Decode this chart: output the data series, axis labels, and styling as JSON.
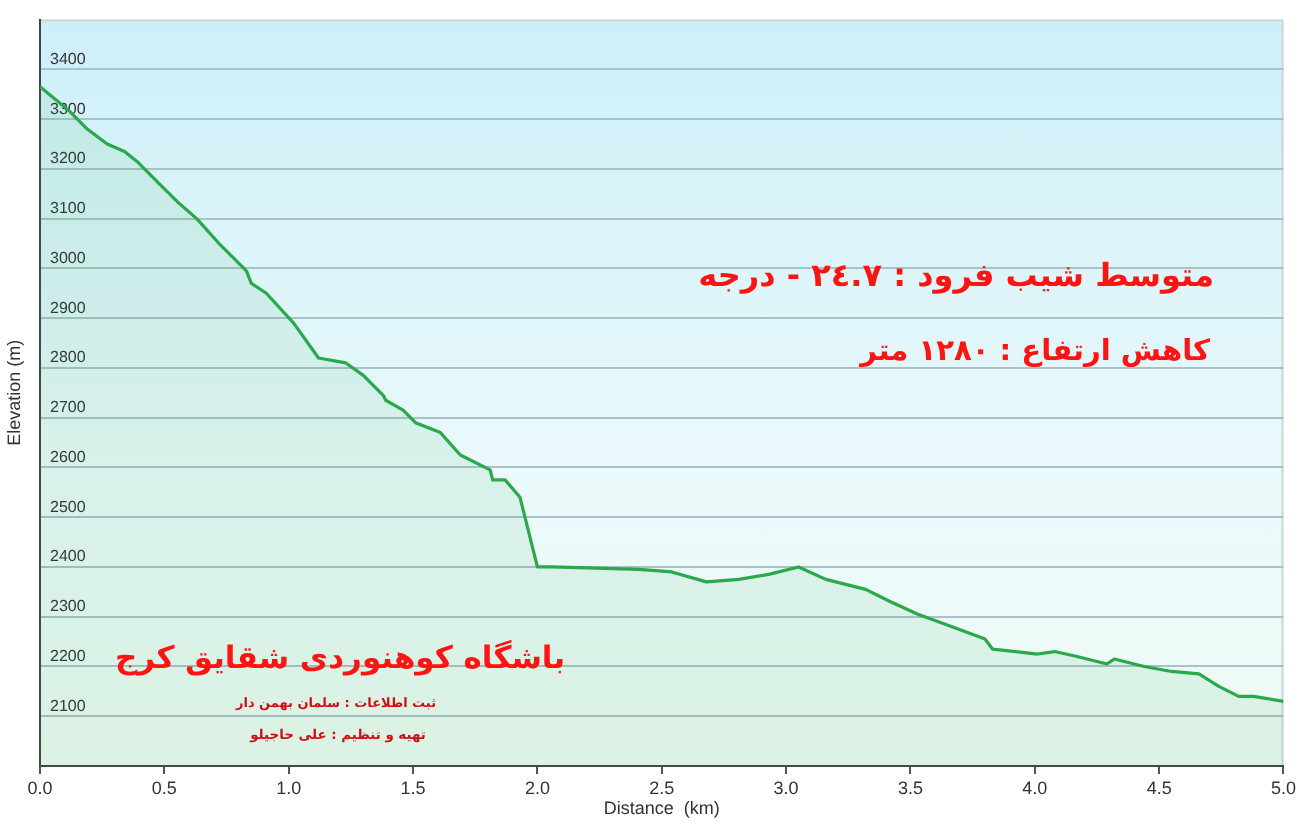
{
  "chart_data": {
    "type": "area",
    "xlabel": "Distance  (km)",
    "ylabel": "Elevation (m)",
    "color": "#2aa84a",
    "x": [
      0,
      0.11,
      0.19,
      0.27,
      0.34,
      0.39,
      0.48,
      0.55,
      0.63,
      0.72,
      0.83,
      0.85,
      0.91,
      1.02,
      1.12,
      1.23,
      1.3,
      1.38,
      1.39,
      1.46,
      1.51,
      1.61,
      1.69,
      1.81,
      1.82,
      1.87,
      1.93,
      2.0,
      2.06,
      2.41,
      2.54,
      2.68,
      2.81,
      2.93,
      3.05,
      3.16,
      3.32,
      3.42,
      3.53,
      3.64,
      3.8,
      3.83,
      4.01,
      4.08,
      4.17,
      4.29,
      4.32,
      4.44,
      4.55,
      4.66,
      4.74,
      4.82,
      4.88,
      5.0
    ],
    "values": [
      3365,
      3320,
      3280,
      3250,
      3235,
      3215,
      3170,
      3135,
      3100,
      3050,
      2995,
      2970,
      2950,
      2890,
      2820,
      2810,
      2785,
      2745,
      2735,
      2715,
      2690,
      2670,
      2625,
      2595,
      2575,
      2575,
      2540,
      2400,
      2400,
      2395,
      2390,
      2370,
      2375,
      2385,
      2400,
      2375,
      2355,
      2330,
      2305,
      2285,
      2255,
      2235,
      2225,
      2230,
      2220,
      2205,
      2215,
      2200,
      2190,
      2185,
      2160,
      2140,
      2140,
      2130
    ],
    "xlim": [
      0,
      5
    ],
    "ylim": [
      2000,
      3500
    ],
    "xticks": [
      {
        "value": 0,
        "label": "0.0"
      },
      0.5,
      {
        "value": 1,
        "label": "1.0"
      },
      1.5,
      {
        "value": 2,
        "label": "2.0"
      },
      2.5,
      {
        "value": 3,
        "label": "3.0"
      },
      3.5,
      {
        "value": 4,
        "label": "4.0"
      },
      4.5,
      {
        "value": 5,
        "label": "5.0"
      }
    ],
    "yticks": [
      2100,
      2200,
      2300,
      2400,
      2500,
      2600,
      2700,
      2800,
      2900,
      3000,
      3100,
      3200,
      3300,
      3400
    ],
    "grid": "y",
    "annotations": [
      "متوسط شیب فرود : ٢٤.٧ - درجه",
      "کاهش ارتفاع : ١٢٨٠ متر",
      "باشگاه کوهنوردی شقایق کرج",
      "ثبت اطلاعات : سلمان بهمن دار",
      "تهیه و تنظیم : علی حاجیلو"
    ]
  }
}
